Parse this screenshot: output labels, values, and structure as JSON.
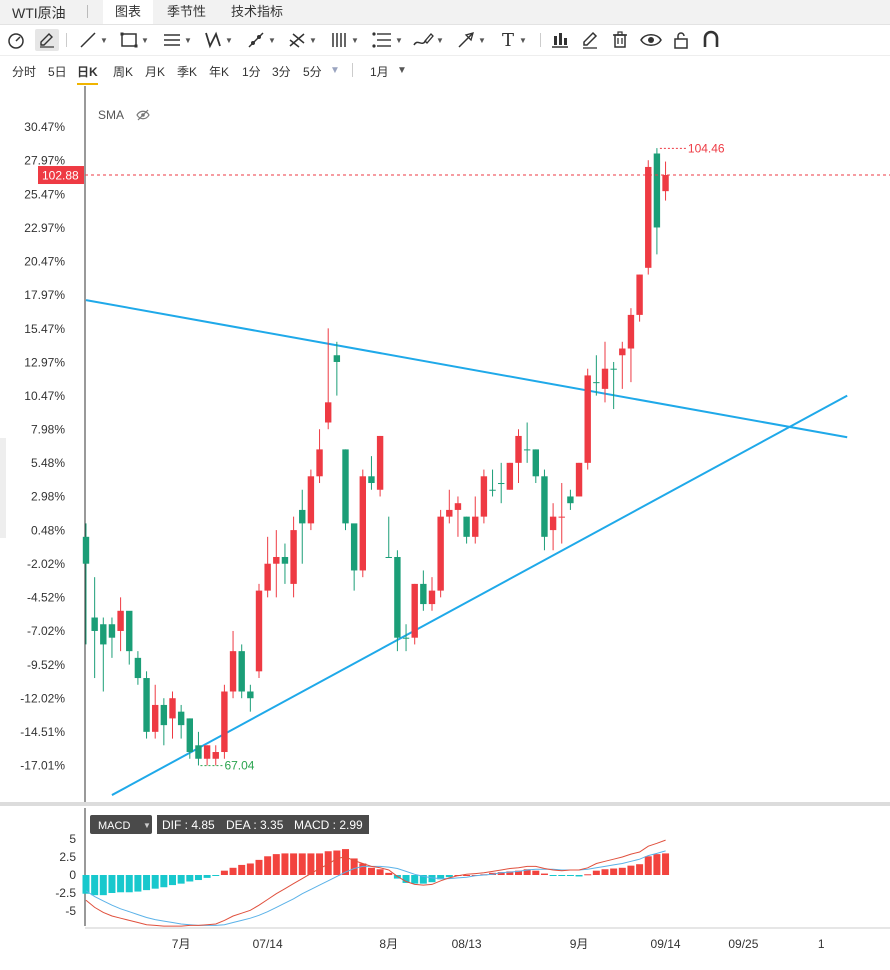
{
  "app": {
    "title": "WTI原油"
  },
  "tabs": [
    {
      "label": "图表",
      "active": true
    },
    {
      "label": "季节性",
      "active": false
    },
    {
      "label": "技术指标",
      "active": false
    }
  ],
  "toolbar": {
    "icons": [
      "speedometer-icon",
      "pencil-icon",
      "line-icon",
      "rect-icon",
      "parallel-lines-icon",
      "pattern-icon",
      "pen-icon",
      "fork-icon",
      "vertical-lines-icon",
      "fib-icon",
      "brush-icon",
      "arrow-icon",
      "text-icon",
      "bar-chart-icon",
      "edit-icon",
      "trash-icon",
      "eye-icon",
      "lock-icon",
      "magnet-icon"
    ],
    "text_tool": "T"
  },
  "periods": [
    {
      "label": "分时",
      "active": false
    },
    {
      "label": "5日",
      "active": false
    },
    {
      "label": "日K",
      "active": true
    },
    {
      "label": "周K",
      "active": false
    },
    {
      "label": "月K",
      "active": false
    },
    {
      "label": "季K",
      "active": false
    },
    {
      "label": "年K",
      "active": false
    },
    {
      "label": "1分",
      "active": false
    },
    {
      "label": "3分",
      "active": false
    },
    {
      "label": "5分",
      "active": false
    }
  ],
  "range_select": "1月",
  "indicator": {
    "sma_label": "SMA"
  },
  "macd": {
    "label": "MACD",
    "dif_text": "DIF : 4.85",
    "dea_text": "DEA : 3.35",
    "macd_text": "MACD : 2.99"
  },
  "colors": {
    "up": "#ee3a43",
    "down": "#1b9e77",
    "trend": "#1fa9e9",
    "macd_pos": "#f2433e",
    "macd_neg": "#17c8cd",
    "dea_line": "#5bb2e8",
    "dif_line": "#e0503d"
  },
  "chart_data": {
    "type": "candlestick",
    "price_axis_ticks": [
      "30.47%",
      "27.97%",
      "25.47%",
      "22.97%",
      "20.47%",
      "17.97%",
      "15.47%",
      "12.97%",
      "10.47%",
      "7.98%",
      "5.48%",
      "2.98%",
      "0.48%",
      "-2.02%",
      "-4.52%",
      "-7.02%",
      "-9.52%",
      "-12.02%",
      "-14.51%",
      "-17.01%"
    ],
    "price_axis_values": [
      30.47,
      27.97,
      25.47,
      22.97,
      20.47,
      17.97,
      15.47,
      12.97,
      10.47,
      7.98,
      5.48,
      2.98,
      0.48,
      -2.02,
      -4.52,
      -7.02,
      -9.52,
      -12.02,
      -14.51,
      -17.01
    ],
    "current_price": {
      "label": "102.88",
      "value": 102.88,
      "pct": 26.9
    },
    "max_marker": {
      "label": "104.46",
      "pct": 28.88
    },
    "min_marker": {
      "label": "67.04",
      "pct": -17.01
    },
    "x_labels": [
      {
        "label": "7月",
        "index": 11
      },
      {
        "label": "07/14",
        "index": 21
      },
      {
        "label": "8月",
        "index": 35
      },
      {
        "label": "08/13",
        "index": 44
      },
      {
        "label": "9月",
        "index": 57
      },
      {
        "label": "09/14",
        "index": 67
      },
      {
        "label": "09/25",
        "index": 76
      },
      {
        "label": "1",
        "index": 85
      }
    ],
    "candles": [
      [
        0,
        -2.0,
        1.0,
        -8.0,
        -5.0
      ],
      [
        -7.0,
        -6.0,
        -3.0,
        -10.5,
        -8.0
      ],
      [
        -8.0,
        -6.5,
        -6.0,
        -11.5,
        -7.5
      ],
      [
        -7.5,
        -6.5,
        -6.0,
        -9.0,
        -7.0
      ],
      [
        -7.0,
        -5.5,
        -4.5,
        -8.5,
        -5.5
      ],
      [
        -5.5,
        -8.5,
        -7.0,
        -9.5,
        -9.0
      ],
      [
        -9.0,
        -10.5,
        -8.5,
        -11.0,
        -10.5
      ],
      [
        -10.5,
        -14.5,
        -10.0,
        -15.0,
        -14.5
      ],
      [
        -14.5,
        -12.5,
        -11.0,
        -15.0,
        -12.5
      ],
      [
        -12.5,
        -14.0,
        -12.0,
        -15.5,
        -13.5
      ],
      [
        -13.5,
        -12.0,
        -11.5,
        -15.0,
        -12.0
      ],
      [
        -13.0,
        -14.0,
        -12.5,
        -15.0,
        -13.5
      ],
      [
        -13.5,
        -16.0,
        -13.5,
        -16.5,
        -15.5
      ],
      [
        -15.5,
        -16.5,
        -14.5,
        -17.0,
        -16.5
      ],
      [
        -16.5,
        -15.5,
        -15.5,
        -17.0,
        -15.5
      ],
      [
        -16.5,
        -16.0,
        -15.5,
        -17.0,
        -16.0
      ],
      [
        -16.0,
        -11.5,
        -11.0,
        -16.5,
        -11.5
      ],
      [
        -11.5,
        -8.5,
        -7.0,
        -12.0,
        -8.5
      ],
      [
        -8.5,
        -11.5,
        -8.0,
        -12.0,
        -11.5
      ],
      [
        -11.5,
        -12.0,
        -11.0,
        -13.0,
        -12.0
      ],
      [
        -10.0,
        -4.0,
        -3.5,
        -10.5,
        -4.0
      ],
      [
        -4.0,
        -2.0,
        0.0,
        -4.5,
        -2.0
      ],
      [
        -2.0,
        -1.5,
        0.5,
        -4.5,
        -1.5
      ],
      [
        -1.5,
        -2.0,
        -0.5,
        -3.5,
        -2.0
      ],
      [
        -3.5,
        0.5,
        1.5,
        -4.5,
        0.5
      ],
      [
        1.0,
        2.0,
        3.5,
        -2.0,
        1.0
      ],
      [
        1.0,
        4.5,
        5.0,
        0.5,
        4.5
      ],
      [
        4.5,
        6.5,
        8.0,
        4.0,
        6.5
      ],
      [
        8.5,
        10.0,
        15.5,
        8.0,
        13.0
      ],
      [
        13.0,
        13.5,
        14.5,
        10.5,
        10.5
      ],
      [
        6.5,
        1.0,
        6.5,
        0.5,
        1.0
      ],
      [
        1.0,
        -2.5,
        -1.0,
        -4.0,
        -2.5
      ],
      [
        -2.5,
        4.5,
        5.0,
        -3.0,
        4.5
      ],
      [
        4.5,
        4.0,
        6.0,
        3.5,
        3.5
      ],
      [
        3.5,
        7.5,
        7.5,
        3.0,
        7.5
      ],
      [
        -1.5,
        -1.5,
        1.5,
        -1.5,
        -1.5
      ],
      [
        -1.5,
        -7.5,
        -1.0,
        -8.5,
        -7.5
      ],
      [
        -7.5,
        -7.5,
        -6.5,
        -8.5,
        -7.5
      ],
      [
        -7.5,
        -3.5,
        -3.5,
        -8.0,
        -3.5
      ],
      [
        -3.5,
        -5.0,
        -2.5,
        -5.5,
        -5.0
      ],
      [
        -5.0,
        -4.0,
        -3.0,
        -5.5,
        -4.0
      ],
      [
        -4.0,
        1.5,
        2.0,
        -4.5,
        1.5
      ],
      [
        1.5,
        2.0,
        3.5,
        1.0,
        2.0
      ],
      [
        2.0,
        2.5,
        3.0,
        0.0,
        2.5
      ],
      [
        1.5,
        0.0,
        1.5,
        -0.5,
        0.0
      ],
      [
        0.0,
        1.5,
        3.0,
        -0.5,
        1.5
      ],
      [
        1.5,
        4.5,
        5.0,
        1.0,
        4.5
      ],
      [
        3.5,
        3.5,
        5.0,
        3.0,
        4.0
      ],
      [
        4.0,
        4.0,
        5.5,
        2.5,
        3.5
      ],
      [
        3.5,
        5.5,
        5.5,
        3.5,
        5.5
      ],
      [
        5.5,
        7.5,
        8.0,
        4.0,
        7.5
      ],
      [
        6.5,
        6.5,
        8.5,
        5.5,
        6.5
      ],
      [
        6.5,
        4.5,
        6.5,
        4.0,
        4.5
      ],
      [
        4.5,
        0.0,
        5.0,
        -1.0,
        0.0
      ],
      [
        0.5,
        1.5,
        2.5,
        -1.0,
        1.5
      ],
      [
        1.5,
        1.5,
        4.0,
        -0.5,
        1.5
      ],
      [
        3.0,
        2.5,
        3.5,
        2.0,
        2.5
      ],
      [
        3.0,
        5.5,
        5.5,
        3.0,
        5.5
      ],
      [
        5.5,
        12.0,
        12.5,
        5.0,
        12.0
      ],
      [
        11.5,
        11.5,
        13.5,
        10.5,
        11.0
      ],
      [
        11.0,
        12.5,
        14.5,
        10.0,
        12.5
      ],
      [
        12.5,
        12.5,
        13.0,
        9.5,
        12.5
      ],
      [
        13.5,
        14.0,
        14.5,
        11.0,
        14.0
      ],
      [
        14.0,
        16.5,
        17.0,
        11.5,
        16.5
      ],
      [
        16.5,
        19.5,
        19.5,
        16.0,
        19.5
      ],
      [
        20.0,
        27.5,
        28.0,
        19.5,
        27.5
      ],
      [
        28.5,
        23.0,
        28.9,
        21.0,
        23.0
      ],
      [
        26.9,
        25.7,
        27.9,
        25.0,
        25.7
      ]
    ],
    "candle_colors": [
      "down",
      "down",
      "down",
      "down",
      "up",
      "down",
      "down",
      "down",
      "up",
      "down",
      "up",
      "down",
      "down",
      "down",
      "up",
      "up",
      "up",
      "up",
      "down",
      "down",
      "up",
      "up",
      "up",
      "down",
      "up",
      "down",
      "up",
      "up",
      "up",
      "down",
      "down",
      "down",
      "up",
      "down",
      "up",
      "down",
      "down",
      "down",
      "up",
      "down",
      "up",
      "up",
      "up",
      "up",
      "down",
      "up",
      "up",
      "down",
      "down",
      "up",
      "up",
      "down",
      "down",
      "down",
      "up",
      "up",
      "down",
      "up",
      "up",
      "down",
      "up",
      "down",
      "up",
      "up",
      "up",
      "up",
      "down",
      "up"
    ],
    "trendlines": [
      {
        "from_index": 0,
        "from_pct": 17.6,
        "to_index": 88,
        "to_pct": 7.4
      },
      {
        "from_index": 3,
        "from_pct": -19.2,
        "to_index": 88,
        "to_pct": 10.5
      }
    ],
    "macd_axis_ticks": [
      "5",
      "2.5",
      "0",
      "-2.5",
      "-5"
    ],
    "macd_axis_values": [
      5,
      2.5,
      0,
      -2.5,
      -5
    ],
    "macd_hist": [
      -2.6,
      -2.8,
      -2.8,
      -2.5,
      -2.4,
      -2.4,
      -2.3,
      -2.1,
      -1.9,
      -1.7,
      -1.4,
      -1.2,
      -0.9,
      -0.7,
      -0.4,
      -0.1,
      0.6,
      1.0,
      1.4,
      1.6,
      2.1,
      2.6,
      2.9,
      3.0,
      3.0,
      3.0,
      3.0,
      3.0,
      3.3,
      3.4,
      3.6,
      2.3,
      1.6,
      1.0,
      0.8,
      0.3,
      -0.5,
      -1.1,
      -1.2,
      -1.2,
      -1.0,
      -0.6,
      -0.3,
      0.0,
      0.0,
      0.0,
      0.1,
      0.3,
      0.4,
      0.5,
      0.6,
      0.8,
      0.6,
      0.2,
      -0.1,
      -0.1,
      -0.1,
      -0.2,
      0.1,
      0.6,
      0.8,
      0.9,
      1.0,
      1.3,
      1.5,
      2.6,
      2.9,
      3.0
    ],
    "dif": [
      -3.5,
      -4.5,
      -5.2,
      -5.7,
      -6.0,
      -6.3,
      -6.6,
      -6.9,
      -7.0,
      -7.1,
      -7.1,
      -7.1,
      -7.0,
      -7.0,
      -6.9,
      -6.8,
      -6.3,
      -5.7,
      -5.3,
      -4.9,
      -4.2,
      -3.4,
      -2.6,
      -1.9,
      -1.2,
      -0.5,
      0.2,
      0.9,
      1.5,
      2.3,
      2.5,
      2.0,
      1.6,
      1.2,
      1.0,
      0.7,
      -0.2,
      -0.9,
      -1.3,
      -1.4,
      -1.3,
      -0.8,
      -0.4,
      -0.1,
      0.1,
      0.2,
      0.3,
      0.5,
      0.7,
      0.9,
      1.0,
      1.2,
      1.2,
      0.9,
      0.7,
      0.6,
      0.7,
      0.7,
      1.0,
      1.6,
      1.9,
      2.2,
      2.5,
      2.9,
      3.2,
      4.0,
      4.4,
      4.85
    ],
    "dea": [
      -2.2,
      -3.0,
      -3.6,
      -4.2,
      -4.7,
      -5.1,
      -5.5,
      -5.9,
      -6.2,
      -6.4,
      -6.6,
      -6.8,
      -6.9,
      -7.0,
      -7.0,
      -7.0,
      -6.9,
      -6.6,
      -6.3,
      -6.0,
      -5.6,
      -5.1,
      -4.5,
      -3.9,
      -3.3,
      -2.6,
      -2.0,
      -1.4,
      -0.8,
      -0.2,
      0.4,
      0.9,
      1.2,
      1.2,
      1.2,
      1.1,
      0.9,
      0.5,
      0.1,
      -0.2,
      -0.4,
      -0.5,
      -0.5,
      -0.4,
      -0.3,
      -0.1,
      0.0,
      0.1,
      0.3,
      0.4,
      0.5,
      0.7,
      0.8,
      0.8,
      0.8,
      0.7,
      0.7,
      0.7,
      0.8,
      1.0,
      1.2,
      1.4,
      1.6,
      1.9,
      2.2,
      2.7,
      3.0,
      3.35
    ]
  }
}
